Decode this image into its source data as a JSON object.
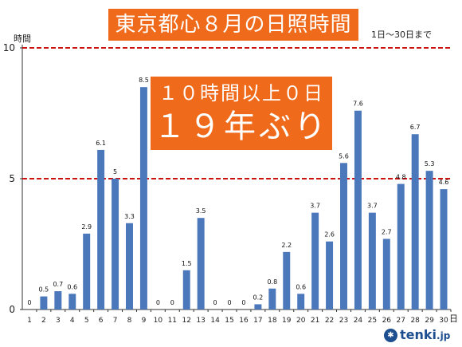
{
  "title": "東京都心８月の日照時間",
  "subtitle": "1日〜30日まで",
  "callout": {
    "line1": "１０時間以上０日",
    "line2": "１９年ぶり"
  },
  "logo": {
    "mark_glyph": "✱",
    "text": "tenki",
    "suffix": ".jp"
  },
  "chart_data": {
    "type": "bar",
    "ylabel": "時間",
    "xunit": "日",
    "categories": [
      "1",
      "2",
      "3",
      "4",
      "5",
      "6",
      "7",
      "8",
      "9",
      "10",
      "11",
      "12",
      "13",
      "14",
      "15",
      "16",
      "17",
      "18",
      "19",
      "20",
      "21",
      "22",
      "23",
      "24",
      "25",
      "26",
      "27",
      "28",
      "29",
      "30"
    ],
    "values": [
      0,
      0.5,
      0.7,
      0.6,
      2.9,
      6.1,
      5,
      3.3,
      8.5,
      0,
      0,
      1.5,
      3.5,
      0,
      0,
      0,
      0.2,
      0.8,
      2.2,
      0.6,
      3.7,
      2.6,
      5.6,
      7.6,
      3.7,
      2.7,
      4.8,
      6.7,
      5.3,
      4.6
    ],
    "value_labels": [
      "0",
      "0.5",
      "0.7",
      "0.6",
      "2.9",
      "6.1",
      "5",
      "3.3",
      "8.5",
      "0",
      "0",
      "1.5",
      "3.5",
      "0",
      "0",
      "0",
      "0.2",
      "0.8",
      "2.2",
      "0.6",
      "3.7",
      "2.6",
      "5.6",
      "7.6",
      "3.7",
      "2.7",
      "4.8",
      "6.7",
      "5.3",
      "4.6"
    ],
    "yticks": [
      0,
      5,
      10
    ],
    "ylim": [
      0,
      10
    ],
    "reference_lines": [
      5,
      10
    ],
    "bar_color": "#4a78bb",
    "reference_color": "#cc1111",
    "grid": false
  },
  "colors": {
    "accent": "#ef6a1a"
  }
}
